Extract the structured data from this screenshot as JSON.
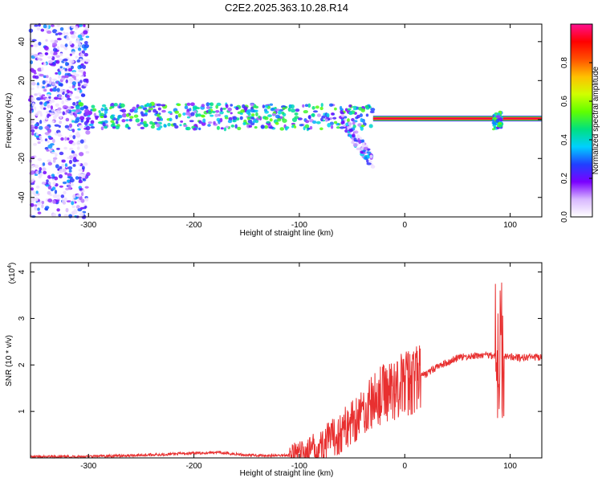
{
  "title": "C2E2.2025.363.10.28.R14",
  "chart_data": [
    {
      "type": "heatmap",
      "xlabel": "Height of straight line (km)",
      "ylabel": "Frequency (Hz)",
      "xlim": [
        -355,
        130
      ],
      "ylim": [
        -50,
        49
      ],
      "x_ticks": [
        -300,
        -200,
        -100,
        0,
        100
      ],
      "y_ticks": [
        -40,
        -20,
        0,
        20,
        40
      ],
      "colorbar": {
        "label": "Normalized spectral amplitude",
        "range": [
          0,
          1
        ],
        "ticks": [
          0.0,
          0.2,
          0.4,
          0.6,
          0.8
        ],
        "tick_labels": [
          "0.0",
          "0.2",
          "0.4",
          "0.6",
          "0.8"
        ],
        "colors": [
          "#ffffff",
          "#d8b8ff",
          "#7a00ff",
          "#2040ff",
          "#00d0ff",
          "#00e080",
          "#60ff00",
          "#d0ff00",
          "#ffc000",
          "#ff5000",
          "#ff0000",
          "#ff1090"
        ]
      },
      "features": [
        {
          "name": "broadband noise",
          "x_range": [
            -355,
            -300
          ],
          "freq_range": [
            -50,
            49
          ],
          "level": 0.15
        },
        {
          "name": "main band",
          "x_range": [
            -315,
            -30
          ],
          "freq_range": [
            -5,
            8
          ],
          "level": 0.35
        },
        {
          "name": "drifting tail",
          "x_range": [
            -60,
            -30
          ],
          "freq_range": [
            -25,
            0
          ],
          "level": 0.2
        },
        {
          "name": "carrier line",
          "x_range": [
            -30,
            130
          ],
          "freq_center": 0.5,
          "level": 0.95
        },
        {
          "name": "burst",
          "x_range": [
            84,
            92
          ],
          "freq_range": [
            -5,
            5
          ],
          "level": 0.4
        }
      ]
    },
    {
      "type": "line",
      "xlabel": "Height of straight line (km)",
      "ylabel": "SNR (10 * v/v)",
      "y_multiplier": "(x10",
      "y_multiplier_exp": "4",
      "y_multiplier_close": ")",
      "xlim": [
        -355,
        130
      ],
      "ylim": [
        0,
        4.2
      ],
      "x_ticks": [
        -300,
        -200,
        -100,
        0,
        100
      ],
      "y_ticks": [
        1,
        2,
        3,
        4
      ],
      "color": "#e83030",
      "x": [
        -355,
        -300,
        -250,
        -200,
        -180,
        -150,
        -120,
        -100,
        -90,
        -80,
        -70,
        -60,
        -50,
        -40,
        -30,
        -20,
        -10,
        0,
        10,
        20,
        30,
        40,
        50,
        60,
        70,
        80,
        85,
        88,
        90,
        92,
        95,
        100,
        110,
        120,
        130
      ],
      "y": [
        0.02,
        0.03,
        0.06,
        0.1,
        0.12,
        0.06,
        0.05,
        0.08,
        0.15,
        0.25,
        0.4,
        0.55,
        0.8,
        1.0,
        1.2,
        1.4,
        1.5,
        1.6,
        1.7,
        1.8,
        1.95,
        2.05,
        2.15,
        2.18,
        2.2,
        2.22,
        2.2,
        2.25,
        2.2,
        2.25,
        2.2,
        2.18,
        2.15,
        2.17,
        2.15
      ]
    }
  ]
}
